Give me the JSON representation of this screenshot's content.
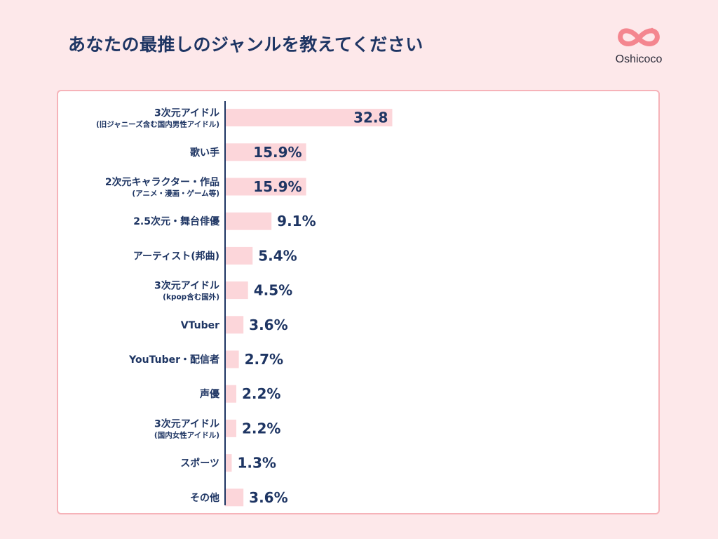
{
  "title": "あなたの最推しのジャンルを教えてください",
  "brand": {
    "name": "Oshicoco",
    "color": "#f4868f",
    "icon": "infinity-heart-icon"
  },
  "colors": {
    "bar": "#fcd6da",
    "axis": "#1e3563",
    "text": "#1e3563",
    "panel_border": "#f6b3b9",
    "background": "#fde8ea"
  },
  "chart_data": {
    "type": "bar",
    "orientation": "horizontal",
    "categories": [
      {
        "label": "3次元アイドル",
        "sublabel": "(旧ジャニーズ含む国内男性アイドル)"
      },
      {
        "label": "歌い手"
      },
      {
        "label": "2次元キャラクター・作品",
        "sublabel": "(アニメ・漫画・ゲーム等)"
      },
      {
        "label": "2.5次元・舞台俳優"
      },
      {
        "label": "アーティスト(邦曲)"
      },
      {
        "label": "3次元アイドル",
        "sublabel": "(kpop含む国外)"
      },
      {
        "label": "VTuber"
      },
      {
        "label": "YouTuber・配信者"
      },
      {
        "label": "声優"
      },
      {
        "label": "3次元アイドル",
        "sublabel": "(国内女性アイドル)"
      },
      {
        "label": "スポーツ"
      },
      {
        "label": "その他"
      }
    ],
    "values": [
      32.8,
      15.9,
      15.9,
      9.1,
      5.4,
      4.5,
      3.6,
      2.7,
      2.2,
      2.2,
      1.3,
      3.6
    ],
    "value_labels": [
      "32.8",
      "15.9%",
      "15.9%",
      "9.1%",
      "5.4%",
      "4.5%",
      "3.6%",
      "2.7%",
      "2.2%",
      "2.2%",
      "1.3%",
      "3.6%"
    ],
    "xlim": [
      0,
      100
    ],
    "grid": false,
    "legend": "none"
  }
}
